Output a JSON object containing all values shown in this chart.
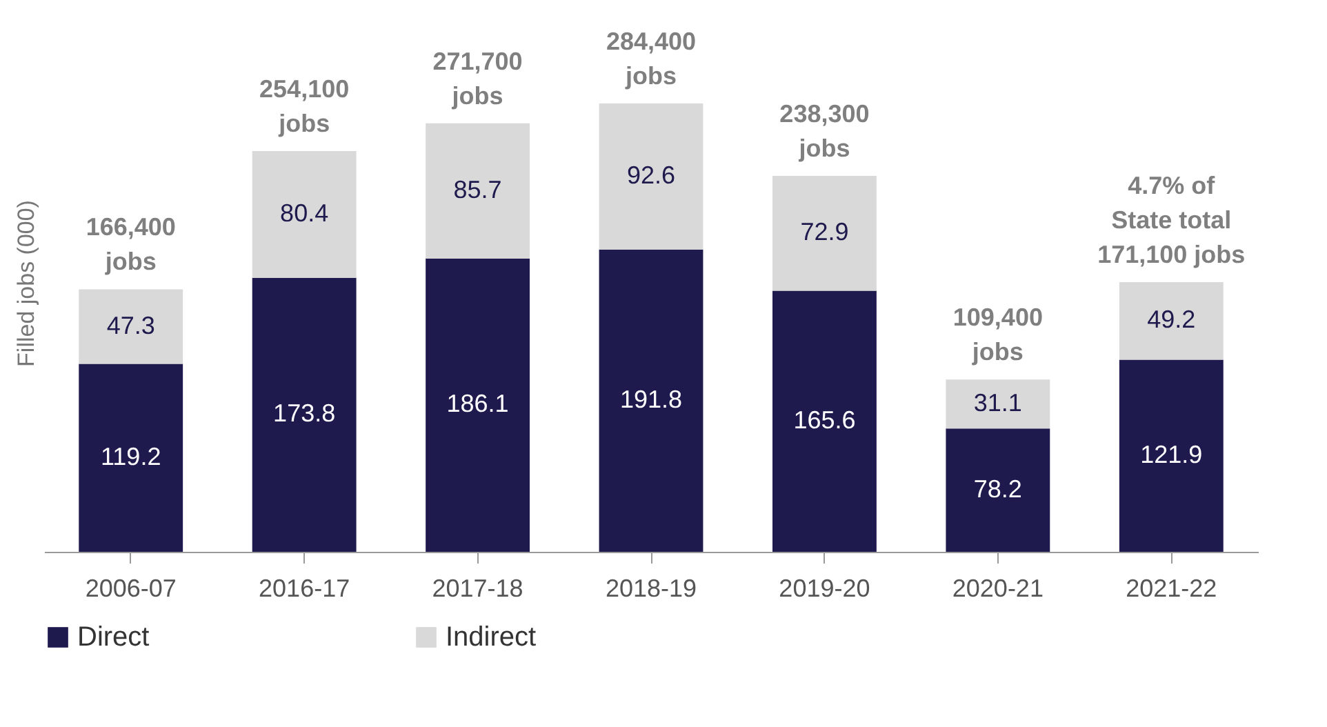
{
  "chart_data": {
    "type": "bar",
    "ylabel": "Filled jobs (000)",
    "categories": [
      "2006-07",
      "2016-17",
      "2017-18",
      "2018-19",
      "2019-20",
      "2020-21",
      "2021-22"
    ],
    "stacked": true,
    "data_labels": true,
    "legend": "bottom",
    "series": [
      {
        "name": "Direct",
        "color": "#1f1a4d",
        "values": [
          119.2,
          173.8,
          186.1,
          191.8,
          165.6,
          78.2,
          121.9
        ]
      },
      {
        "name": "Indirect",
        "color": "#d9d9d9",
        "values": [
          47.3,
          80.4,
          85.7,
          92.6,
          72.9,
          31.1,
          49.2
        ]
      }
    ],
    "annotations": [
      {
        "text": "166,400\njobs",
        "x": "2006-07",
        "y": 166.5
      },
      {
        "text": "254,100\njobs",
        "x": "2016-17",
        "y": 254.2
      },
      {
        "text": "271,700\njobs",
        "x": "2017-18",
        "y": 271.8
      },
      {
        "text": "284,400\njobs",
        "x": "2018-19",
        "y": 284.4
      },
      {
        "text": "238,300\njobs",
        "x": "2019-20",
        "y": 238.5
      },
      {
        "text": "109,400\njobs",
        "x": "2020-21",
        "y": 109.3
      },
      {
        "text": "4.7% of\nState total\n171,100 jobs",
        "x": "2021-22",
        "y": 171.1
      }
    ]
  }
}
